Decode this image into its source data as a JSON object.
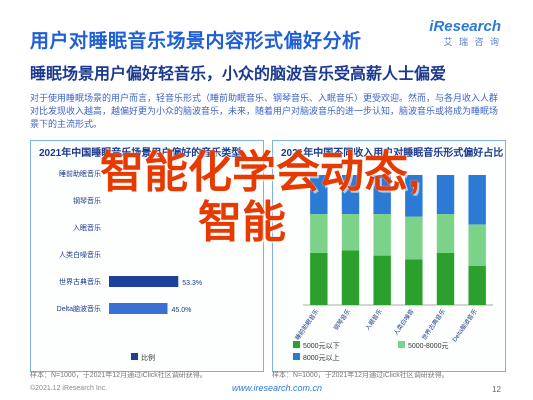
{
  "header": {
    "title": "用户对睡眠音乐场景内容形式偏好分析",
    "logo": "iResearch",
    "logo_sub": "艾 瑞 咨 询"
  },
  "headline": "睡眠场景用户偏好轻音乐，小众的脑波音乐受高薪人士偏爱",
  "paragraph": "对于使用睡眠场景的用户而言，轻音乐形式（睡前助眠音乐、钢琴音乐、入眠音乐）更受欢迎。然而，与各月收入人群对比发现收入越高，越偏好更为小众的脑波音乐，未来，随着用户对脑波音乐的进一步认知，脑波音乐或将成为睡眠场景下的主流形式。",
  "left_panel": {
    "title": "2021年中国睡眠音乐场景用户偏好的音乐类型",
    "source": "样本：N=1000，于2021年12月通过iClick社区调研获得。"
  },
  "right_panel": {
    "title": "2021年中国不同收入用户对睡眠音乐形式偏好占比",
    "source": "样本：N=1000，于2021年12月通过iClick社区调研获得。"
  },
  "overlay": {
    "line1": "智能化学会动态,",
    "line2": "智能"
  },
  "footer": {
    "copyright": "©2021.12 iResearch Inc.",
    "site": "www.iresearch.com.cn",
    "page": "12"
  },
  "chart_data": [
    {
      "type": "bar",
      "orientation": "horizontal",
      "title": "2021年中国睡眠音乐场景用户偏好的音乐类型",
      "categories": [
        "睡前助眠音乐",
        "钢琴音乐",
        "入眠音乐",
        "人类白噪音乐",
        "世界古典音乐",
        "Delta脑波音乐"
      ],
      "values": [
        null,
        null,
        null,
        null,
        53.3,
        45.0
      ],
      "value_labels": [
        "",
        "",
        "",
        "",
        "53.3%",
        "45.0%"
      ],
      "legend": [
        "比例"
      ],
      "colors": [
        "#1e3f9a",
        "#3a6fd6",
        "#7aa8ec"
      ]
    },
    {
      "type": "bar",
      "stacked": true,
      "title": "2021年中国不同收入用户对睡眠音乐形式偏好占比",
      "categories": [
        "睡前助眠音乐",
        "钢琴音乐",
        "入眠音乐",
        "人类白噪音",
        "世界古典音乐",
        "Delta脑波音乐"
      ],
      "series": [
        {
          "name": "5000元以下",
          "values": [
            40,
            42,
            38,
            35,
            40,
            30
          ]
        },
        {
          "name": "5000-8000元",
          "values": [
            30,
            28,
            32,
            33,
            30,
            32
          ]
        },
        {
          "name": "8000元以上",
          "values": [
            30,
            30,
            30,
            32,
            30,
            38
          ]
        }
      ],
      "colors": [
        "#2ca02c",
        "#7bd38a",
        "#2b7bd6"
      ]
    }
  ]
}
